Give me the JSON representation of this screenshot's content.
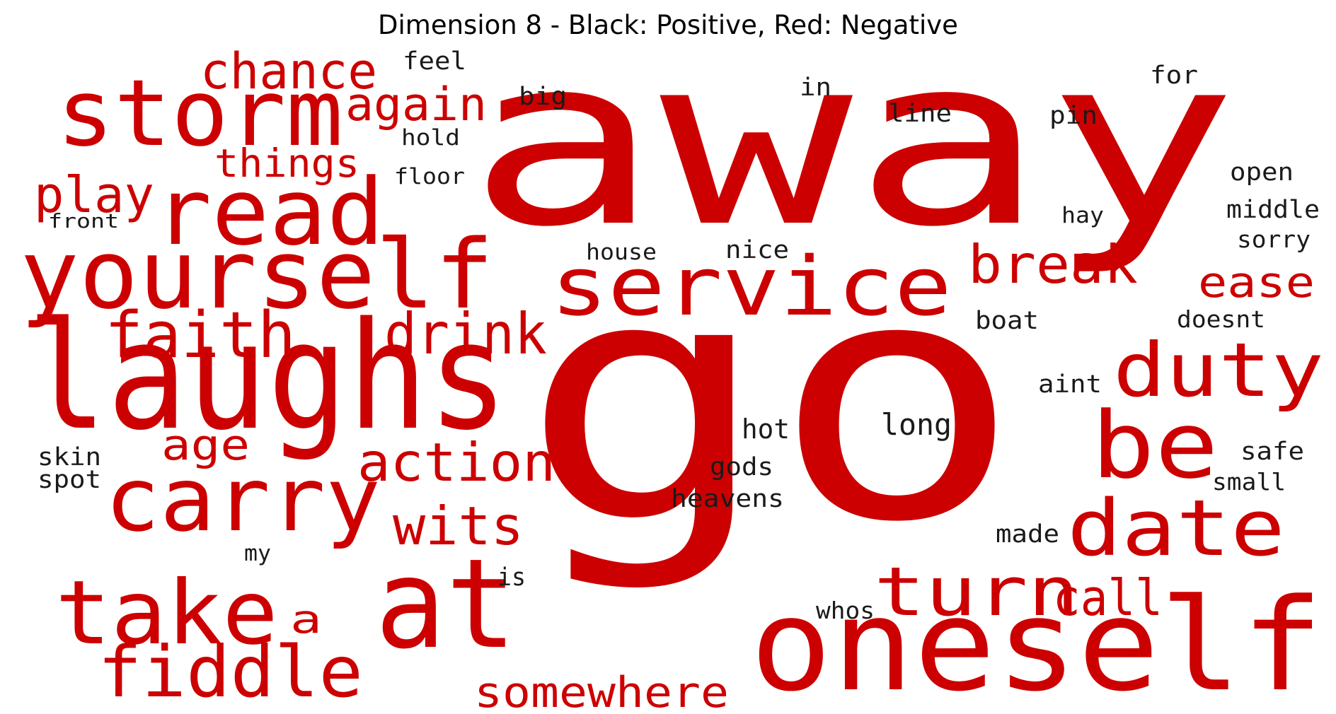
{
  "title": "Dimension 8 - Black: Positive, Red: Negative",
  "colors": {
    "negative": "#cc0000",
    "positive": "#1a1a1a",
    "background": "#ffffff"
  },
  "words": [
    {
      "text": "away",
      "sentiment": "negative"
    },
    {
      "text": "go",
      "sentiment": "negative"
    },
    {
      "text": "laughs",
      "sentiment": "negative"
    },
    {
      "text": "yourself",
      "sentiment": "negative"
    },
    {
      "text": "oneself",
      "sentiment": "negative"
    },
    {
      "text": "storm",
      "sentiment": "negative"
    },
    {
      "text": "read",
      "sentiment": "negative"
    },
    {
      "text": "service",
      "sentiment": "negative"
    },
    {
      "text": "carry",
      "sentiment": "negative"
    },
    {
      "text": "take",
      "sentiment": "negative"
    },
    {
      "text": "at",
      "sentiment": "negative"
    },
    {
      "text": "fiddle",
      "sentiment": "negative"
    },
    {
      "text": "date",
      "sentiment": "negative"
    },
    {
      "text": "duty",
      "sentiment": "negative"
    },
    {
      "text": "be",
      "sentiment": "negative"
    },
    {
      "text": "turn",
      "sentiment": "negative"
    },
    {
      "text": "faith",
      "sentiment": "negative"
    },
    {
      "text": "drink",
      "sentiment": "negative"
    },
    {
      "text": "break",
      "sentiment": "negative"
    },
    {
      "text": "action",
      "sentiment": "negative"
    },
    {
      "text": "wits",
      "sentiment": "negative"
    },
    {
      "text": "chance",
      "sentiment": "negative"
    },
    {
      "text": "again",
      "sentiment": "negative"
    },
    {
      "text": "things",
      "sentiment": "negative"
    },
    {
      "text": "play",
      "sentiment": "negative"
    },
    {
      "text": "age",
      "sentiment": "negative"
    },
    {
      "text": "somewhere",
      "sentiment": "negative"
    },
    {
      "text": "call",
      "sentiment": "negative"
    },
    {
      "text": "ease",
      "sentiment": "negative"
    },
    {
      "text": "a",
      "sentiment": "negative"
    },
    {
      "text": "feel",
      "sentiment": "positive"
    },
    {
      "text": "big",
      "sentiment": "positive"
    },
    {
      "text": "hold",
      "sentiment": "positive"
    },
    {
      "text": "floor",
      "sentiment": "positive"
    },
    {
      "text": "front",
      "sentiment": "positive"
    },
    {
      "text": "in",
      "sentiment": "positive"
    },
    {
      "text": "line",
      "sentiment": "positive"
    },
    {
      "text": "for",
      "sentiment": "positive"
    },
    {
      "text": "pin",
      "sentiment": "positive"
    },
    {
      "text": "open",
      "sentiment": "positive"
    },
    {
      "text": "hay",
      "sentiment": "positive"
    },
    {
      "text": "middle",
      "sentiment": "positive"
    },
    {
      "text": "sorry",
      "sentiment": "positive"
    },
    {
      "text": "house",
      "sentiment": "positive"
    },
    {
      "text": "nice",
      "sentiment": "positive"
    },
    {
      "text": "boat",
      "sentiment": "positive"
    },
    {
      "text": "doesnt",
      "sentiment": "positive"
    },
    {
      "text": "aint",
      "sentiment": "positive"
    },
    {
      "text": "long",
      "sentiment": "positive"
    },
    {
      "text": "hot",
      "sentiment": "positive"
    },
    {
      "text": "gods",
      "sentiment": "positive"
    },
    {
      "text": "heavens",
      "sentiment": "positive"
    },
    {
      "text": "skin",
      "sentiment": "positive"
    },
    {
      "text": "spot",
      "sentiment": "positive"
    },
    {
      "text": "safe",
      "sentiment": "positive"
    },
    {
      "text": "small",
      "sentiment": "positive"
    },
    {
      "text": "made",
      "sentiment": "positive"
    },
    {
      "text": "my",
      "sentiment": "positive"
    },
    {
      "text": "is",
      "sentiment": "positive"
    },
    {
      "text": "whos",
      "sentiment": "positive"
    }
  ]
}
